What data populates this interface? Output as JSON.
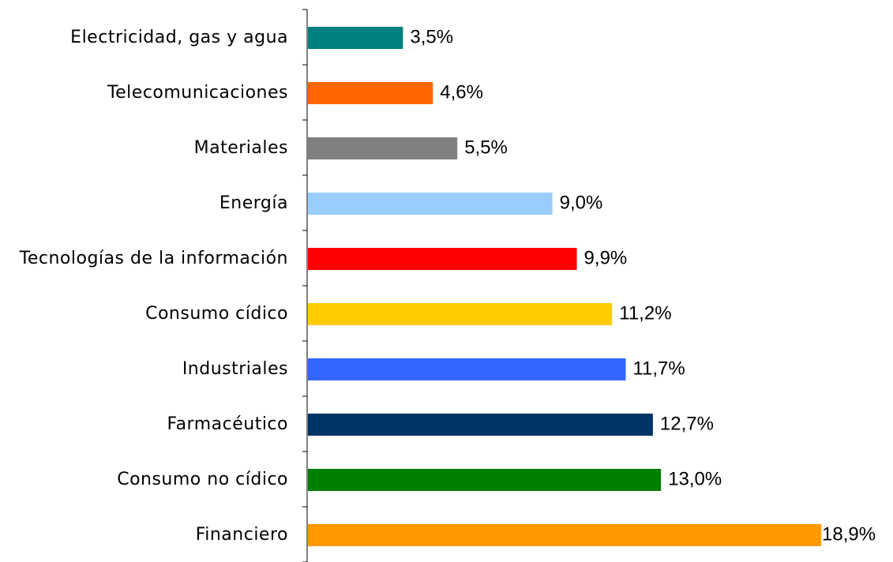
{
  "chart_data": {
    "type": "bar",
    "orientation": "horizontal",
    "categories": [
      "Electricidad, gas y agua",
      "Telecomunicaciones",
      "Materiales",
      "Energía",
      "Tecnologías de la información",
      "Consumo cídico",
      "Industriales",
      "Farmacéutico",
      "Consumo no cídico",
      "Financiero"
    ],
    "values": [
      3.5,
      4.6,
      5.5,
      9.0,
      9.9,
      11.2,
      11.7,
      12.7,
      13.0,
      18.9
    ],
    "value_labels": [
      "3,5%",
      "4,6%",
      "5,5%",
      "9,0%",
      "9,9%",
      "11,2%",
      "11,7%",
      "12,7%",
      "13,0%",
      "18,9%"
    ],
    "colors": [
      "#008080",
      "#ff6600",
      "#808080",
      "#99ccff",
      "#ff0000",
      "#ffcc00",
      "#3366ff",
      "#003366",
      "#008000",
      "#ff9900"
    ]
  }
}
